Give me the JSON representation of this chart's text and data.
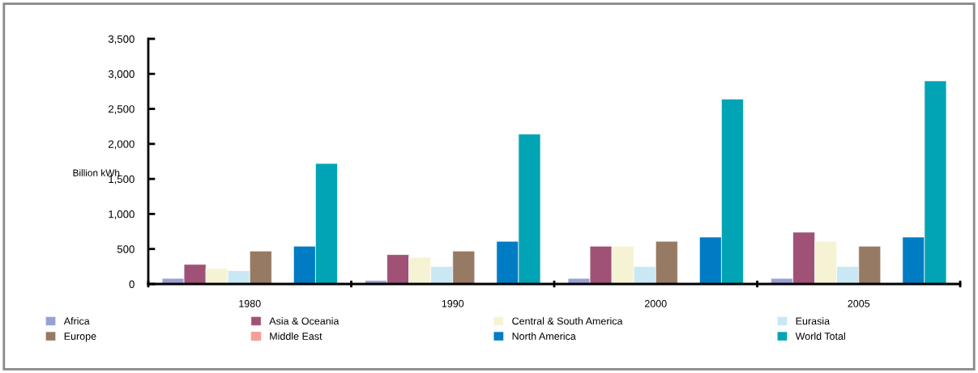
{
  "chart_data": {
    "type": "bar",
    "ylabel": "Billion kWh",
    "categories": [
      "1980",
      "1990",
      "2000",
      "2005"
    ],
    "series": [
      {
        "name": "Africa",
        "color": "#9aa0d4",
        "values": [
          80,
          50,
          80,
          80
        ]
      },
      {
        "name": "Asia & Oceania",
        "color": "#a05276",
        "values": [
          280,
          420,
          540,
          740
        ]
      },
      {
        "name": "Central & South America",
        "color": "#f5f3d3",
        "values": [
          220,
          380,
          540,
          610
        ]
      },
      {
        "name": "Eurasia",
        "color": "#c9e8f4",
        "values": [
          190,
          250,
          250,
          250
        ]
      },
      {
        "name": "Europe",
        "color": "#977a64",
        "values": [
          470,
          470,
          610,
          540
        ]
      },
      {
        "name": "Middle East",
        "color": "#f4a09a",
        "values": [
          null,
          null,
          null,
          null
        ]
      },
      {
        "name": "North America",
        "color": "#007cc4",
        "values": [
          540,
          610,
          670,
          670
        ]
      },
      {
        "name": "World Total",
        "color": "#00a4b4",
        "values": [
          1720,
          2140,
          2640,
          2900
        ]
      }
    ],
    "ylim": [
      0,
      3500
    ],
    "yticks": [
      {
        "value": 0,
        "label": "0"
      },
      {
        "value": 500,
        "label": "500"
      },
      {
        "value": 1000,
        "label": "1,000"
      },
      {
        "value": 1500,
        "label": "1,500"
      },
      {
        "value": 2000,
        "label": "2,000"
      },
      {
        "value": 2500,
        "label": "2,500"
      },
      {
        "value": 3000,
        "label": "3,000"
      },
      {
        "value": 3500,
        "label": "3,500"
      }
    ],
    "grid": false,
    "legend": "bottom"
  }
}
